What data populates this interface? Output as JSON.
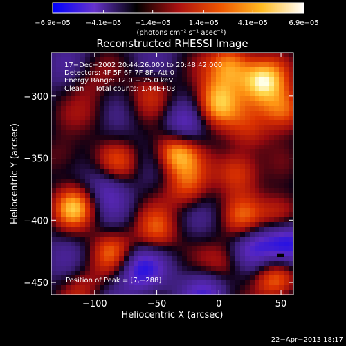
{
  "chart_data": {
    "type": "heatmap",
    "title": "Reconstructed RHESSI Image",
    "xlabel": "Heliocentric X (arcsec)",
    "ylabel": "Heliocentric Y (arcsec)",
    "xlim": [
      -135,
      60
    ],
    "ylim": [
      -460,
      -265
    ],
    "x_ticks": [
      -100,
      -50,
      0,
      50
    ],
    "x_tick_labels": [
      "−100",
      "−50",
      "0",
      "50"
    ],
    "y_ticks": [
      -300,
      -350,
      -400,
      -450
    ],
    "y_tick_labels": [
      "−300",
      "−350",
      "−400",
      "−450"
    ],
    "colorbar": {
      "min": -6.9e-05,
      "max": 6.9e-05,
      "ticks": [
        -6.9e-05,
        -4.1e-05,
        -1.4e-05,
        1.4e-05,
        4.1e-05,
        6.9e-05
      ],
      "tick_labels": [
        "−6.9e−05",
        "−4.1e−05",
        "−1.4e−05",
        "1.4e−05",
        "4.1e−05",
        "6.9e−05"
      ],
      "unit": "(photons cm⁻² s⁻¹ asec⁻²)",
      "colors": [
        "#0000ff",
        "#6633cc",
        "#000000",
        "#aa1111",
        "#ee5500",
        "#ffbb22",
        "#ffffff"
      ]
    },
    "annotations": [
      "17−Dec−2002 20:44:26.000 to 20:48:42.000",
      "Detectors: 4F 5F 6F 7F 8F, Att 0",
      "Energy Range: 12.0 − 25.0 keV",
      "Clean     Total counts: 1.44E+03"
    ],
    "peak_label": "Position of Peak = [7,−288]",
    "peak_position": [
      7,
      -288
    ],
    "hot_spots": [
      {
        "x": 35,
        "y": -288,
        "v": 1.0
      },
      {
        "x": 10,
        "y": -275,
        "v": 0.9
      },
      {
        "x": -5,
        "y": -312,
        "v": 0.6
      },
      {
        "x": 52,
        "y": -312,
        "v": 0.9
      },
      {
        "x": -35,
        "y": -345,
        "v": 0.95
      },
      {
        "x": 15,
        "y": -360,
        "v": 0.75
      },
      {
        "x": -80,
        "y": -355,
        "v": 0.55
      },
      {
        "x": -125,
        "y": -350,
        "v": 0.45
      },
      {
        "x": -55,
        "y": -295,
        "v": 0.45
      },
      {
        "x": -115,
        "y": -390,
        "v": 0.8
      },
      {
        "x": -25,
        "y": -375,
        "v": 0.6
      },
      {
        "x": 20,
        "y": -400,
        "v": 0.5
      },
      {
        "x": 50,
        "y": -395,
        "v": 0.75
      },
      {
        "x": -85,
        "y": -425,
        "v": 0.55
      },
      {
        "x": -50,
        "y": -410,
        "v": 0.6
      },
      {
        "x": 5,
        "y": -435,
        "v": 0.5
      },
      {
        "x": 45,
        "y": -450,
        "v": 0.7
      },
      {
        "x": -110,
        "y": -455,
        "v": 0.4
      },
      {
        "x": 25,
        "y": -330,
        "v": 0.35
      },
      {
        "x": -100,
        "y": -315,
        "v": 0.3
      },
      {
        "x": -105,
        "y": -290,
        "v": 0.25
      },
      {
        "x": 0,
        "y": -300,
        "v": 0.5
      },
      {
        "x": -65,
        "y": -440,
        "v": -0.6
      },
      {
        "x": -30,
        "y": -325,
        "v": -0.5
      },
      {
        "x": -90,
        "y": -370,
        "v": -0.45
      },
      {
        "x": 30,
        "y": -420,
        "v": -0.5
      },
      {
        "x": -10,
        "y": -455,
        "v": -0.45
      },
      {
        "x": 55,
        "y": -420,
        "v": -0.85
      }
    ]
  },
  "footer": {
    "date": "22−Apr−2013 18:17"
  }
}
